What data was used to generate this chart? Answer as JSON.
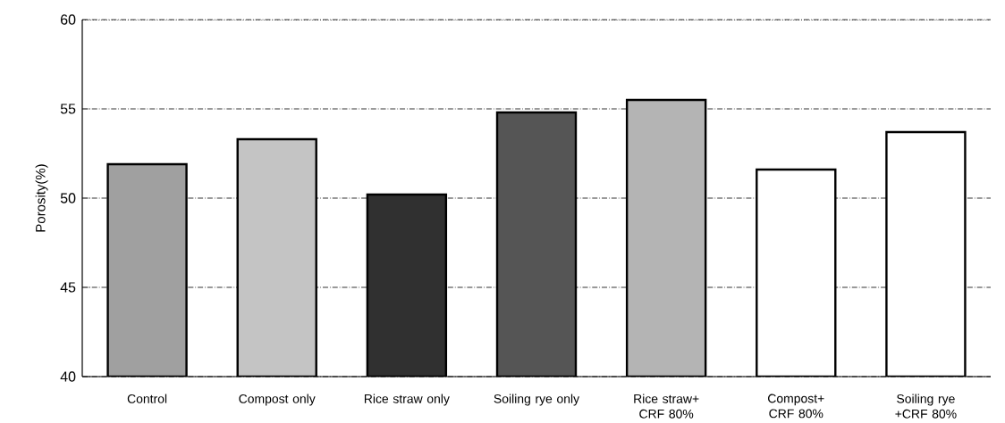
{
  "chart_data": {
    "type": "bar",
    "ylabel": "Porosity(%)",
    "categories": [
      "Control",
      "Compost only",
      "Rice straw only",
      "Soiling rye only",
      "Rice straw+ CRF 80%",
      "Compost+ CRF 80%",
      "Soiling rye +CRF 80%"
    ],
    "values": [
      51.9,
      53.3,
      50.2,
      54.8,
      55.5,
      51.6,
      53.7
    ],
    "colors": [
      "#a0a0a0",
      "#c4c4c4",
      "#303030",
      "#555555",
      "#b4b4b4",
      "#ffffff",
      "#ffffff"
    ],
    "ylim": [
      40,
      60
    ],
    "yticks": [
      40,
      45,
      50,
      55,
      60
    ],
    "grid": "y"
  }
}
